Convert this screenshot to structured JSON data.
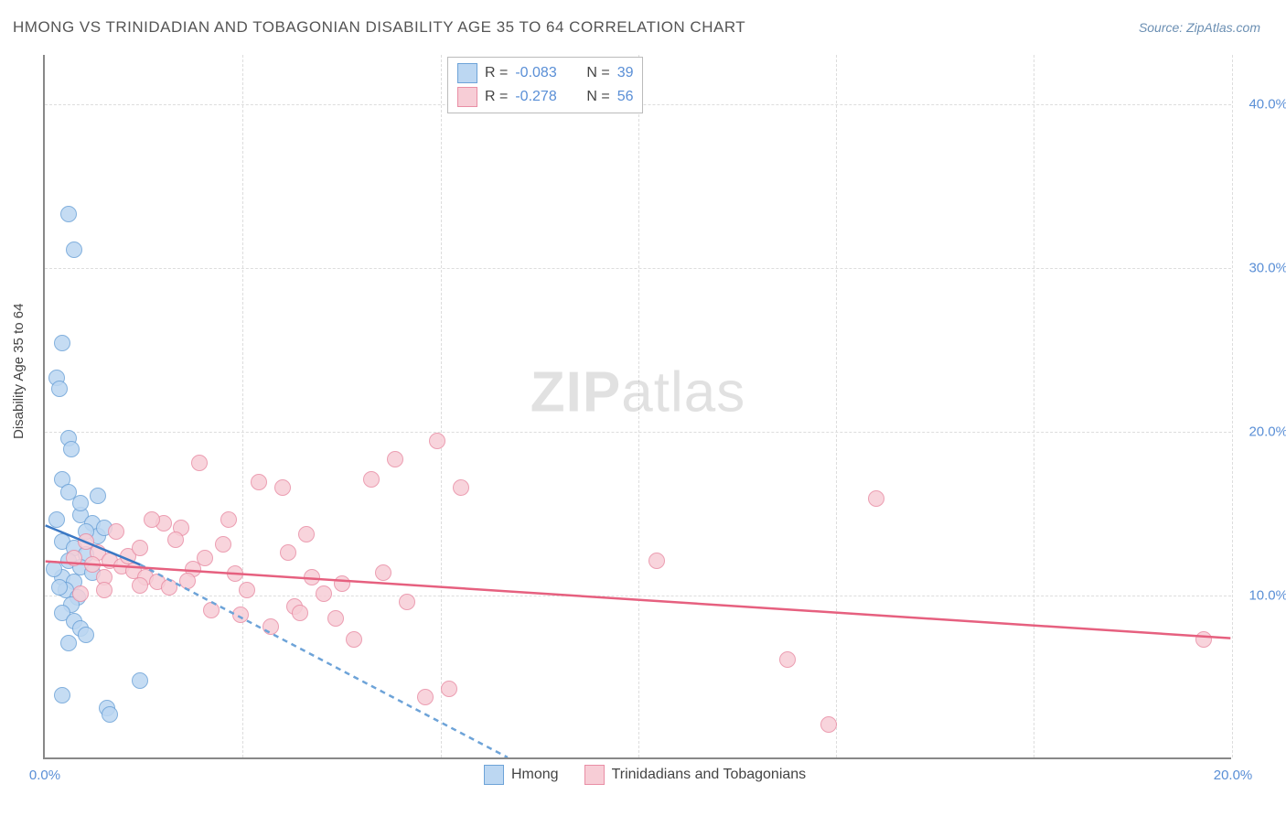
{
  "title": "HMONG VS TRINIDADIAN AND TOBAGONIAN DISABILITY AGE 35 TO 64 CORRELATION CHART",
  "source": "Source: ZipAtlas.com",
  "ylabel": "Disability Age 35 to 64",
  "watermark_prefix": "ZIP",
  "watermark_suffix": "atlas",
  "chart": {
    "type": "scatter",
    "xlim": [
      0,
      20
    ],
    "ylim": [
      0,
      43
    ],
    "xtick_values": [
      0,
      20
    ],
    "xtick_labels": [
      "0.0%",
      "20.0%"
    ],
    "ytick_values": [
      10,
      20,
      30,
      40
    ],
    "ytick_labels": [
      "10.0%",
      "20.0%",
      "30.0%",
      "40.0%"
    ],
    "background_color": "#ffffff",
    "grid_color": "#dddddd",
    "axis_color": "#888888",
    "marker_radius": 9,
    "marker_border_width": 1.5,
    "series": [
      {
        "name": "Hmong",
        "label": "Hmong",
        "fill": "#bcd7f2",
        "stroke": "#6da3d8",
        "R": "-0.083",
        "N": "39",
        "trend": {
          "x1": 0,
          "y1": 14.2,
          "x2": 1.6,
          "y2": 11.8,
          "dash_from_x": 1.6,
          "dash_to_x": 7.8,
          "dash_to_y": 0
        },
        "points": [
          [
            0.4,
            33.2
          ],
          [
            0.5,
            31.0
          ],
          [
            0.3,
            25.3
          ],
          [
            0.2,
            23.2
          ],
          [
            0.25,
            22.5
          ],
          [
            0.4,
            19.5
          ],
          [
            0.45,
            18.8
          ],
          [
            0.3,
            17.0
          ],
          [
            0.4,
            16.2
          ],
          [
            0.6,
            14.8
          ],
          [
            0.8,
            14.3
          ],
          [
            0.9,
            13.5
          ],
          [
            0.3,
            13.2
          ],
          [
            0.5,
            12.8
          ],
          [
            0.7,
            12.4
          ],
          [
            0.4,
            12.0
          ],
          [
            0.6,
            11.6
          ],
          [
            0.8,
            11.3
          ],
          [
            0.3,
            11.0
          ],
          [
            0.5,
            10.7
          ],
          [
            0.35,
            10.2
          ],
          [
            0.55,
            9.8
          ],
          [
            0.7,
            13.8
          ],
          [
            1.0,
            14.0
          ],
          [
            0.45,
            9.3
          ],
          [
            0.3,
            8.8
          ],
          [
            0.5,
            8.3
          ],
          [
            0.6,
            7.9
          ],
          [
            0.7,
            7.5
          ],
          [
            0.4,
            7.0
          ],
          [
            0.3,
            3.8
          ],
          [
            1.05,
            3.0
          ],
          [
            1.1,
            2.6
          ],
          [
            1.6,
            4.7
          ],
          [
            0.9,
            16.0
          ],
          [
            0.2,
            14.5
          ],
          [
            0.15,
            11.5
          ],
          [
            0.25,
            10.4
          ],
          [
            0.6,
            15.5
          ]
        ]
      },
      {
        "name": "Trinidadians and Tobagonians",
        "label": "Trinidadians and Tobagonians",
        "fill": "#f7cdd6",
        "stroke": "#e98ea5",
        "R": "-0.278",
        "N": "56",
        "trend": {
          "x1": 0,
          "y1": 12.0,
          "x2": 20,
          "y2": 7.3
        },
        "points": [
          [
            0.7,
            13.2
          ],
          [
            0.9,
            12.5
          ],
          [
            1.1,
            12.0
          ],
          [
            1.3,
            11.7
          ],
          [
            1.5,
            11.4
          ],
          [
            1.7,
            11.0
          ],
          [
            1.9,
            10.7
          ],
          [
            2.1,
            10.4
          ],
          [
            0.8,
            11.8
          ],
          [
            1.0,
            11.0
          ],
          [
            1.2,
            13.8
          ],
          [
            1.4,
            12.3
          ],
          [
            1.6,
            12.8
          ],
          [
            2.0,
            14.3
          ],
          [
            2.3,
            14.0
          ],
          [
            2.5,
            11.5
          ],
          [
            2.6,
            18.0
          ],
          [
            2.8,
            9.0
          ],
          [
            3.0,
            13.0
          ],
          [
            3.2,
            11.2
          ],
          [
            3.4,
            10.2
          ],
          [
            3.6,
            16.8
          ],
          [
            3.8,
            8.0
          ],
          [
            4.0,
            16.5
          ],
          [
            4.2,
            9.2
          ],
          [
            4.4,
            13.6
          ],
          [
            4.5,
            11.0
          ],
          [
            4.7,
            10.0
          ],
          [
            4.9,
            8.5
          ],
          [
            5.2,
            7.2
          ],
          [
            5.5,
            17.0
          ],
          [
            5.7,
            11.3
          ],
          [
            5.9,
            18.2
          ],
          [
            6.1,
            9.5
          ],
          [
            6.4,
            3.7
          ],
          [
            6.6,
            19.3
          ],
          [
            6.8,
            4.2
          ],
          [
            7.0,
            16.5
          ],
          [
            10.3,
            12.0
          ],
          [
            12.5,
            6.0
          ],
          [
            13.2,
            2.0
          ],
          [
            14.0,
            15.8
          ],
          [
            19.5,
            7.2
          ],
          [
            2.2,
            13.3
          ],
          [
            1.8,
            14.5
          ],
          [
            0.6,
            10.0
          ],
          [
            0.5,
            12.2
          ],
          [
            3.1,
            14.5
          ],
          [
            2.4,
            10.8
          ],
          [
            4.1,
            12.5
          ],
          [
            3.3,
            8.7
          ],
          [
            2.7,
            12.2
          ],
          [
            1.0,
            10.2
          ],
          [
            1.6,
            10.5
          ],
          [
            5.0,
            10.6
          ],
          [
            4.3,
            8.8
          ]
        ]
      }
    ]
  },
  "legend_top": {
    "R_label": "R =",
    "N_label": "N =",
    "value_color": "#5a8fd6",
    "label_color": "#444444"
  }
}
